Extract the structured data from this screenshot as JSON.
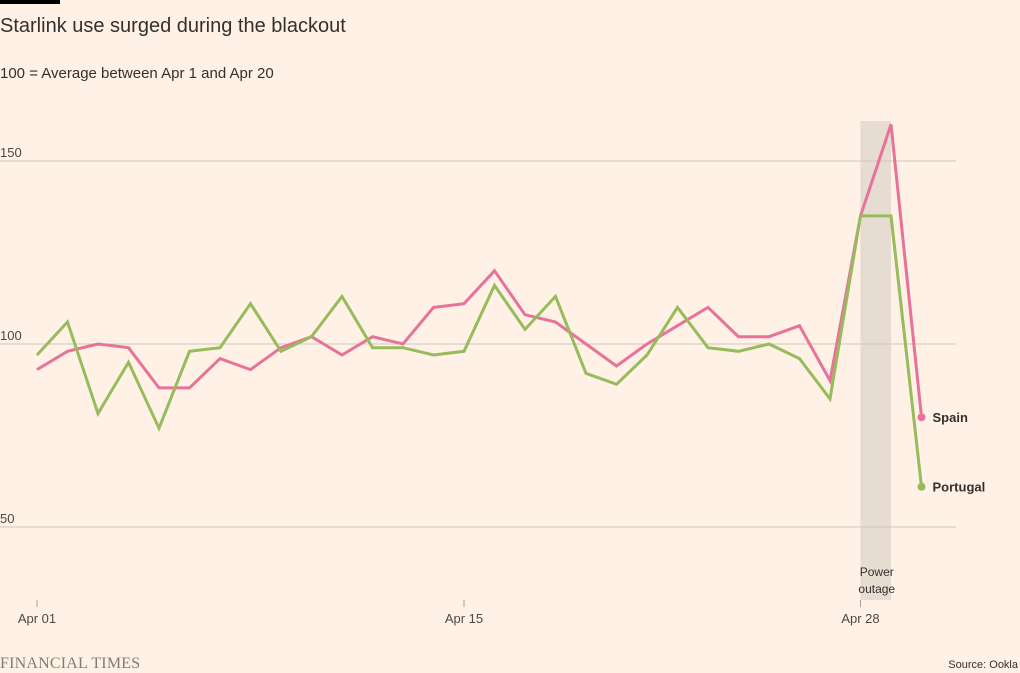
{
  "header": {
    "title": "Starlink use surged during the blackout",
    "subtitle": "100 = Average between Apr 1 and Apr 20"
  },
  "footer": {
    "brand": "FINANCIAL TIMES",
    "source": "Source: Ookla"
  },
  "chart_data": {
    "type": "line",
    "title": "Starlink use surged during the blackout",
    "subtitle": "100 = Average between Apr 1 and Apr 20",
    "x": [
      "2025-04-01",
      "2025-04-02",
      "2025-04-03",
      "2025-04-04",
      "2025-04-05",
      "2025-04-06",
      "2025-04-07",
      "2025-04-08",
      "2025-04-09",
      "2025-04-10",
      "2025-04-11",
      "2025-04-12",
      "2025-04-13",
      "2025-04-14",
      "2025-04-15",
      "2025-04-16",
      "2025-04-17",
      "2025-04-18",
      "2025-04-19",
      "2025-04-20",
      "2025-04-21",
      "2025-04-22",
      "2025-04-23",
      "2025-04-24",
      "2025-04-25",
      "2025-04-26",
      "2025-04-27",
      "2025-04-28",
      "2025-04-29",
      "2025-04-30"
    ],
    "xticks": [
      {
        "value": "2025-04-01",
        "label": "Apr 01"
      },
      {
        "value": "2025-04-15",
        "label": "Apr 15"
      },
      {
        "value": "2025-04-28",
        "label": "Apr 28"
      }
    ],
    "yticks": [
      50,
      100,
      150
    ],
    "ylim": [
      30,
      160
    ],
    "grid": true,
    "series": [
      {
        "name": "Spain",
        "color": "#e7739a",
        "values": [
          93,
          98,
          100,
          99,
          88,
          88,
          96,
          93,
          99,
          102,
          97,
          102,
          100,
          110,
          111,
          120,
          108,
          106,
          100,
          94,
          100,
          105,
          110,
          102,
          102,
          105,
          90,
          135,
          160,
          80
        ]
      },
      {
        "name": "Portugal",
        "color": "#96bc5c",
        "values": [
          97,
          106,
          81,
          95,
          77,
          98,
          99,
          111,
          98,
          102,
          113,
          99,
          99,
          97,
          98,
          116,
          104,
          113,
          92,
          89,
          97,
          110,
          99,
          98,
          100,
          96,
          85,
          135,
          135,
          61
        ]
      }
    ],
    "annotations": [
      {
        "type": "shaded-band",
        "x_start": "2025-04-28",
        "x_end": "2025-04-29",
        "label": "Power outage",
        "lines": [
          "Power",
          "outage"
        ],
        "color": "#e6dcd2"
      }
    ]
  }
}
